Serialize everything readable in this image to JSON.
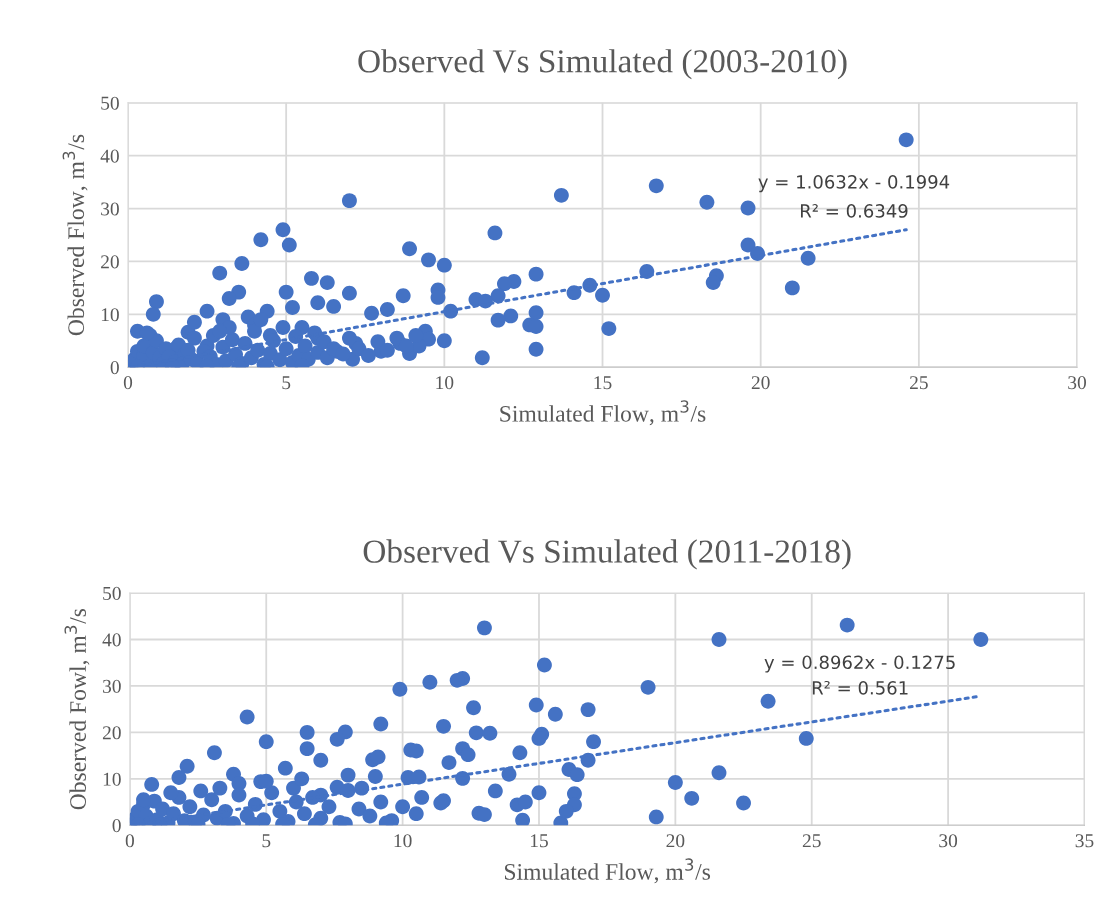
{
  "chart_data": [
    {
      "type": "scatter",
      "title": "Observed Vs Simulated (2003-2010)",
      "xlabel": "Simulated Flow, m$^{3}$/s",
      "ylabel": "Observed Flow, m$^{3}$/s",
      "xlim": [
        0,
        30
      ],
      "xticks": [
        0,
        5,
        10,
        15,
        20,
        25,
        30
      ],
      "ylim": [
        0,
        50
      ],
      "yticks": [
        0,
        10,
        20,
        30,
        40,
        50
      ],
      "grid": true,
      "series": [
        {
          "color": "#4472c4",
          "marker": "circle",
          "x": [
            24.6,
            16.7,
            13.7,
            7.0,
            18.3,
            19.6,
            4.9,
            11.6,
            4.2,
            5.1,
            19.6,
            8.9,
            19.9,
            21.5,
            9.5,
            3.6,
            10.0,
            16.4,
            2.9,
            12.9,
            18.6,
            5.8,
            12.2,
            11.9,
            18.5,
            6.3,
            14.6,
            21.0,
            14.1,
            3.5,
            5.0,
            7.0,
            15.0,
            9.8,
            11.7,
            8.7,
            9.8,
            3.2,
            11.0,
            0.9,
            11.3,
            6.0,
            0.8,
            2.5,
            4.4,
            10.2,
            12.1,
            11.7,
            12.9,
            12.7,
            12.9,
            15.2,
            9.4,
            8.2,
            7.7,
            9.5,
            10.0,
            8.9,
            12.9,
            11.2,
            7.1,
            0.3,
            0.7,
            1.9,
            2.1,
            3.8,
            6.5,
            5.2,
            7.2,
            6.6,
            8.0,
            9.2,
            8.6,
            6.0,
            5.5,
            3.0,
            4.0,
            4.5,
            2.5,
            1.5,
            0.1,
            0.2,
            0.3,
            0.5,
            0.5,
            0.7,
            0.8,
            0.9,
            1.0,
            1.1,
            1.2,
            1.3,
            1.5,
            1.6,
            1.7,
            1.8,
            2.0,
            2.1,
            2.2,
            2.4,
            2.6,
            2.7,
            2.8,
            3.0,
            3.1,
            3.3,
            3.4,
            3.6,
            3.7,
            3.9,
            4.0,
            4.1,
            4.3,
            4.5,
            4.6,
            4.8,
            4.9,
            5.0,
            5.2,
            5.3,
            5.4,
            5.6,
            5.7,
            5.9,
            6.0,
            6.2,
            6.3,
            6.5,
            6.8,
            7.0,
            7.3,
            7.6,
            7.9,
            8.2,
            8.5,
            8.8,
            9.1,
            0.3,
            1.4,
            2.5,
            3.5,
            4.4,
            5.5,
            0.6,
            1.9,
            3.2,
            4.2,
            2.9
          ],
          "values": [
            43,
            34.3,
            32.5,
            31.5,
            31.2,
            30.1,
            26,
            25.4,
            24.1,
            23.1,
            23.1,
            22.4,
            21.5,
            20.6,
            20.3,
            19.6,
            19.3,
            18.1,
            17.8,
            17.6,
            17.3,
            16.8,
            16.2,
            15.8,
            16.0,
            16.0,
            15.5,
            15.0,
            14.1,
            14.2,
            14.2,
            14.0,
            13.6,
            14.6,
            13.5,
            13.5,
            13.2,
            13.0,
            12.8,
            12.4,
            12.5,
            12.2,
            10.0,
            10.6,
            10.6,
            10.6,
            9.7,
            8.9,
            10.3,
            8.0,
            7.7,
            7.3,
            6.8,
            10.9,
            10.2,
            5.3,
            5.0,
            2.6,
            3.4,
            1.8,
            1.5,
            6.8,
            6.0,
            6.6,
            8.5,
            9.5,
            11.5,
            11.3,
            4.5,
            3.0,
            3.0,
            4.0,
            4.5,
            5.5,
            7.5,
            9.0,
            8.0,
            6.0,
            4.0,
            3.5,
            0.2,
            1.5,
            3.0,
            2.2,
            4.0,
            0.3,
            2.8,
            5.0,
            1.8,
            0.6,
            3.5,
            2.0,
            1.0,
            4.2,
            0.4,
            2.5,
            1.5,
            5.5,
            0.8,
            3.0,
            2.0,
            6.0,
            0.5,
            3.8,
            1.2,
            5.2,
            2.4,
            0.7,
            4.5,
            1.8,
            6.8,
            3.2,
            0.5,
            2.6,
            5.0,
            1.4,
            7.5,
            3.5,
            0.9,
            5.8,
            2.2,
            4.0,
            1.5,
            6.5,
            2.8,
            4.8,
            1.8,
            3.5,
            2.5,
            5.5,
            3.5,
            2.2,
            4.8,
            3.2,
            5.5,
            4.0,
            6.0,
            0.1,
            0.2,
            0.2,
            0.1,
            0.1,
            0.3,
            6.5,
            3.2,
            7.5,
            9.0,
            6.8
          ]
        },
        {
          "type": "line",
          "line_style": "dotted",
          "color": "#4472c4",
          "x": [
            0.1,
            24.6
          ],
          "values": [
            0,
            26
          ]
        }
      ],
      "annotations": [
        "y = 1.0632x - 0.1994",
        "R² = 0.6349"
      ]
    },
    {
      "type": "scatter",
      "title": "Observed Vs Simulated (2011-2018)",
      "xlabel": "Simulated Flow, m$^{3}$/s",
      "ylabel": "Observed Fowl, m$^{3}$/s",
      "xlim": [
        0,
        35
      ],
      "xticks": [
        0,
        5,
        10,
        15,
        20,
        25,
        30,
        35
      ],
      "ylim": [
        0,
        50
      ],
      "yticks": [
        0,
        10,
        20,
        30,
        40,
        50
      ],
      "grid": true,
      "series": [
        {
          "color": "#4472c4",
          "marker": "circle",
          "x": [
            13.0,
            26.3,
            21.6,
            31.2,
            15.2,
            11.0,
            12.2,
            12.0,
            19.0,
            9.9,
            23.4,
            12.6,
            14.9,
            15.6,
            16.8,
            4.3,
            11.5,
            9.2,
            12.7,
            13.2,
            15.1,
            15.0,
            24.8,
            6.5,
            7.9,
            17.0,
            7.6,
            5.0,
            8.9,
            9.1,
            12.2,
            11.7,
            6.5,
            7.0,
            14.3,
            10.3,
            10.5,
            16.1,
            16.8,
            3.1,
            12.4,
            13.9,
            16.4,
            21.6,
            20.0,
            20.6,
            22.5,
            19.3,
            14.4,
            15.8,
            16.3,
            16.3,
            14.2,
            14.5,
            15.0,
            12.8,
            13.0,
            12.2,
            13.4,
            10.2,
            10.6,
            11.5,
            10.7,
            9.0,
            8.0,
            2.1,
            3.8,
            5.7,
            0.8,
            1.8,
            2.6,
            4.0,
            7.6,
            4.8,
            16.0,
            11.4,
            8.5,
            6.0,
            7.0,
            0.1,
            0.2,
            0.3,
            0.5,
            0.6,
            0.7,
            0.9,
            1.0,
            1.2,
            1.4,
            1.6,
            1.8,
            2.0,
            2.2,
            2.4,
            2.7,
            3.0,
            3.2,
            3.5,
            3.8,
            4.0,
            4.3,
            4.6,
            4.9,
            5.2,
            5.5,
            5.8,
            6.1,
            6.4,
            6.7,
            7.0,
            7.3,
            7.7,
            8.0,
            8.4,
            8.8,
            9.2,
            9.6,
            10.0,
            10.5,
            0.3,
            1.1,
            2.5,
            3.6,
            4.5,
            5.6,
            6.8,
            7.9,
            9.4,
            0.5,
            1.5,
            3.3,
            5.0,
            6.3
          ],
          "values": [
            42.5,
            43.1,
            40.0,
            40.0,
            34.5,
            30.8,
            31.6,
            31.2,
            29.7,
            29.3,
            26.7,
            25.3,
            25.9,
            23.9,
            24.9,
            23.3,
            21.3,
            21.8,
            19.9,
            19.8,
            19.6,
            18.7,
            18.7,
            20.0,
            20.1,
            18.0,
            18.5,
            18.0,
            14.1,
            14.7,
            16.5,
            13.5,
            16.5,
            14.0,
            15.6,
            16.2,
            16.0,
            12.0,
            14.0,
            15.6,
            15.2,
            11.0,
            10.9,
            11.3,
            9.2,
            5.8,
            4.8,
            1.8,
            1.1,
            0.5,
            6.8,
            4.4,
            4.4,
            5.0,
            7.0,
            2.6,
            2.3,
            10.1,
            7.4,
            10.3,
            10.4,
            5.3,
            6.0,
            10.5,
            10.8,
            12.7,
            11.0,
            12.3,
            8.8,
            10.3,
            7.4,
            9.0,
            8.2,
            9.4,
            3.0,
            4.8,
            8.0,
            8.0,
            6.5,
            0.2,
            1.5,
            3.0,
            4.5,
            2.0,
            0.3,
            5.2,
            1.2,
            3.5,
            0.5,
            2.5,
            6.0,
            1.0,
            4.0,
            0.7,
            2.2,
            5.5,
            1.5,
            3.0,
            0.4,
            6.5,
            2.0,
            4.5,
            1.2,
            7.0,
            3.0,
            0.8,
            5.0,
            2.5,
            6.0,
            1.5,
            4.0,
            0.6,
            7.5,
            3.5,
            2.0,
            5.0,
            1.0,
            4.0,
            2.5,
            0.1,
            0.1,
            0.2,
            0.2,
            0.3,
            0.2,
            0.1,
            0.3,
            0.5,
            5.5,
            7.0,
            8.0,
            9.5,
            10.0
          ]
        },
        {
          "type": "line",
          "line_style": "dotted",
          "color": "#4472c4",
          "x": [
            0.1,
            31.2
          ],
          "values": [
            0,
            27.8
          ]
        }
      ],
      "annotations": [
        "y = 0.8962x - 0.1275",
        "R² = 0.561"
      ]
    }
  ]
}
